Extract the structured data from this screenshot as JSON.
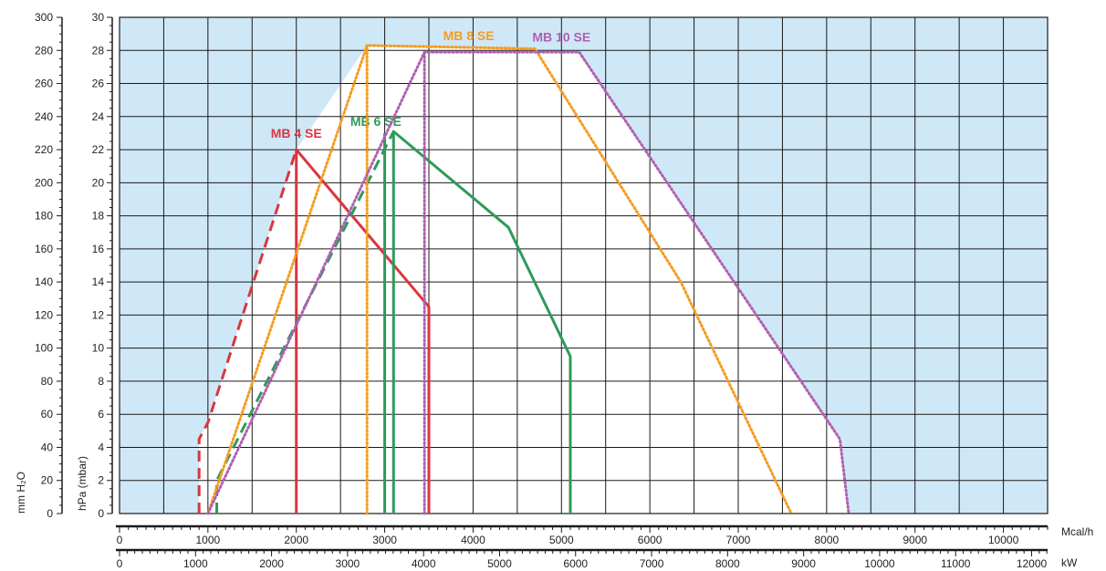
{
  "chart_data": {
    "type": "line",
    "title": "",
    "background_color": "#cfe8f7",
    "working_area_color": "#ffffff",
    "grid": true,
    "x_axes": [
      {
        "unit": "Mcal/h",
        "range": [
          0,
          10500
        ],
        "ticks": [
          0,
          1000,
          2000,
          3000,
          4000,
          5000,
          6000,
          7000,
          8000,
          9000,
          10000
        ]
      },
      {
        "unit": "kW",
        "range": [
          0,
          12210
        ],
        "ticks": [
          0,
          1000,
          2000,
          3000,
          4000,
          5000,
          6000,
          7000,
          8000,
          9000,
          10000,
          11000,
          12000
        ]
      }
    ],
    "y_axes": [
      {
        "unit": "mm H2O",
        "label": "mm H₂O",
        "range": [
          0,
          300
        ],
        "ticks": [
          0,
          20,
          40,
          60,
          80,
          100,
          120,
          140,
          160,
          180,
          200,
          220,
          240,
          260,
          280,
          300
        ]
      },
      {
        "unit": "hPa (mbar)",
        "label": "hPa (mbar)",
        "range": [
          0,
          30
        ],
        "ticks": [
          0,
          2,
          4,
          6,
          8,
          10,
          12,
          14,
          16,
          18,
          20,
          22,
          24,
          26,
          28,
          30
        ]
      }
    ],
    "series": [
      {
        "name": "MB 4 SE",
        "color": "#d9363e",
        "style": "solid",
        "label_anchor": [
          2000,
          224
        ],
        "segments": [
          {
            "dash": true,
            "points": [
              [
                900,
                0
              ],
              [
                900,
                45
              ],
              [
                1000,
                55
              ],
              [
                2000,
                220
              ]
            ]
          },
          {
            "dash": false,
            "points": [
              [
                2000,
                0
              ],
              [
                2000,
                220
              ],
              [
                3500,
                125
              ],
              [
                3500,
                0
              ]
            ]
          }
        ]
      },
      {
        "name": "MB 6 SE",
        "color": "#2e9a5a",
        "style": "solid",
        "label_anchor": [
          2900,
          231
        ],
        "segments": [
          {
            "dash": true,
            "points": [
              [
                1100,
                0
              ],
              [
                1100,
                20
              ],
              [
                3100,
                231
              ]
            ]
          },
          {
            "dash": false,
            "points": [
              [
                3100,
                0
              ],
              [
                3100,
                231
              ],
              [
                4400,
                173
              ],
              [
                5100,
                95
              ],
              [
                5100,
                0
              ]
            ]
          },
          {
            "dash": false,
            "points": [
              [
                3000,
                0
              ],
              [
                3000,
                230
              ]
            ]
          }
        ]
      },
      {
        "name": "MB 8 SE",
        "color": "#f39c22",
        "style": "dotted",
        "label_anchor": [
          3950,
          283
        ],
        "segments": [
          {
            "dash": false,
            "points": [
              [
                1000,
                0
              ],
              [
                2800,
                283
              ],
              [
                4700,
                281
              ],
              [
                6350,
                140
              ],
              [
                7600,
                0
              ]
            ]
          },
          {
            "dash": false,
            "points": [
              [
                2800,
                0
              ],
              [
                2800,
                283
              ]
            ]
          }
        ]
      },
      {
        "name": "MB 10 SE",
        "color": "#b060b0",
        "style": "dotted",
        "label_anchor": [
          5000,
          282
        ],
        "segments": [
          {
            "dash": false,
            "points": [
              [
                1000,
                0
              ],
              [
                3450,
                279
              ],
              [
                5200,
                279
              ],
              [
                8150,
                45
              ],
              [
                8250,
                0
              ]
            ]
          },
          {
            "dash": false,
            "points": [
              [
                3450,
                0
              ],
              [
                3450,
                279
              ]
            ]
          }
        ]
      }
    ]
  }
}
